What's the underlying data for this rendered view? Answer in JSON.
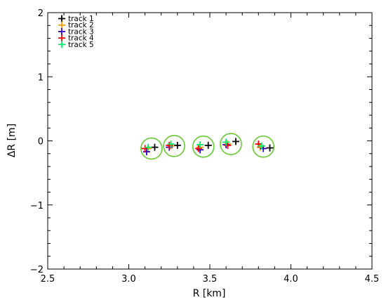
{
  "chart_data": {
    "type": "scatter",
    "title": "",
    "xlabel": "R [km]",
    "ylabel": "ΔR [m]",
    "xlim": [
      2.5,
      4.5
    ],
    "ylim": [
      -2,
      2
    ],
    "xticks": [
      2.5,
      3.0,
      3.5,
      4.0,
      4.5
    ],
    "xtick_labels": [
      "2.5",
      "3.0",
      "3.5",
      "4.0",
      "4.5"
    ],
    "yticks": [
      -2,
      -1,
      0,
      1,
      2
    ],
    "ytick_labels": [
      "−2",
      "−1",
      "0",
      "1",
      "2"
    ],
    "grid": false,
    "legend_position": "top-left",
    "marker": "plus",
    "series": [
      {
        "name": "track 1",
        "color": "#000000",
        "points": [
          [
            3.16,
            -0.1
          ],
          [
            3.3,
            -0.07
          ],
          [
            3.49,
            -0.07
          ],
          [
            3.66,
            -0.01
          ],
          [
            3.87,
            -0.11
          ]
        ]
      },
      {
        "name": "track 2",
        "color": "#ff9900",
        "points": [
          [
            3.12,
            -0.12
          ],
          [
            3.26,
            -0.08
          ],
          [
            3.44,
            -0.1
          ],
          [
            3.61,
            -0.05
          ],
          [
            3.81,
            -0.1
          ]
        ]
      },
      {
        "name": "track 3",
        "color": "#3300cc",
        "points": [
          [
            3.11,
            -0.17
          ],
          [
            3.25,
            -0.1
          ],
          [
            3.44,
            -0.14
          ],
          [
            3.6,
            -0.06
          ],
          [
            3.83,
            -0.12
          ]
        ]
      },
      {
        "name": "track 4",
        "color": "#ff0000",
        "points": [
          [
            3.1,
            -0.12
          ],
          [
            3.25,
            -0.07
          ],
          [
            3.43,
            -0.12
          ],
          [
            3.61,
            -0.07
          ],
          [
            3.8,
            -0.05
          ]
        ]
      },
      {
        "name": "track 5",
        "color": "#00ee66",
        "points": [
          [
            3.12,
            -0.1
          ],
          [
            3.26,
            -0.05
          ],
          [
            3.44,
            -0.06
          ],
          [
            3.6,
            -0.02
          ],
          [
            3.82,
            -0.08
          ]
        ]
      }
    ],
    "circles": {
      "color": "#66cc33",
      "centers": [
        [
          3.14,
          -0.12
        ],
        [
          3.28,
          -0.08
        ],
        [
          3.46,
          -0.09
        ],
        [
          3.63,
          -0.05
        ],
        [
          3.83,
          -0.09
        ]
      ]
    }
  }
}
